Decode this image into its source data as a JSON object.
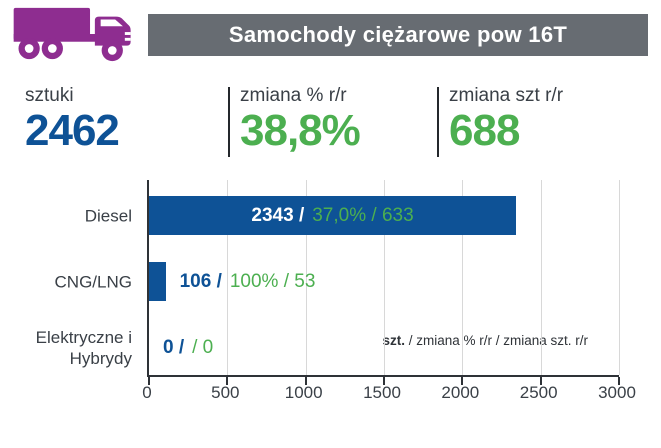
{
  "header": {
    "title": "Samochody ciężarowe pow 16T",
    "bar_color": "#676C72",
    "icon": "truck-icon",
    "icon_color": "#8E2D90"
  },
  "stats": [
    {
      "label": "sztuki",
      "value": "2462",
      "color": "#0E5296"
    },
    {
      "label": "zmiana % r/r",
      "value": "38,8%",
      "color": "#4CAF50"
    },
    {
      "label": "zmiana szt r/r",
      "value": "688",
      "color": "#4CAF50"
    }
  ],
  "chart_data": {
    "type": "bar",
    "orientation": "horizontal",
    "title": "Samochody ciężarowe pow 16T",
    "categories": [
      "Diesel",
      "CNG/LNG",
      "Elektryczne i Hybrydy"
    ],
    "series": [
      {
        "name": "szt.",
        "values": [
          2343,
          106,
          0
        ]
      },
      {
        "name": "zmiana % r/r",
        "values": [
          "37,0%",
          "100%",
          null
        ]
      },
      {
        "name": "zmiana szt. r/r",
        "values": [
          633,
          53,
          0
        ]
      }
    ],
    "rows": [
      {
        "category": "Diesel",
        "value": 2343,
        "count_text": "2343 /",
        "change_text": "37,0% / 633",
        "label_position": "inside"
      },
      {
        "category": "CNG/LNG",
        "value": 106,
        "count_text": "106 /",
        "change_text": "100% / 53",
        "label_position": "outside"
      },
      {
        "category": "Elektryczne i Hybrydy",
        "value": 0,
        "count_text": "0 /",
        "change_text": "/ 0",
        "label_position": "outside"
      }
    ],
    "totals": {
      "sztuki": 2462,
      "zmiana_pct_rr": "38,8%",
      "zmiana_szt_rr": 688
    },
    "xlim": [
      0,
      3000
    ],
    "xticks": [
      "0",
      "500",
      "1000",
      "1500",
      "2000",
      "2500",
      "3000"
    ],
    "grid": true,
    "legend_position": "bottom-right-inside",
    "legend_note": {
      "prefix": "szt.",
      "rest": " / zmiana % r/r / zmiana szt. r/r"
    },
    "bar_color": "#0E5296",
    "accent_green": "#4CAF50",
    "axis_color": "#2E3237",
    "gridline_color": "#D8D8D8"
  }
}
